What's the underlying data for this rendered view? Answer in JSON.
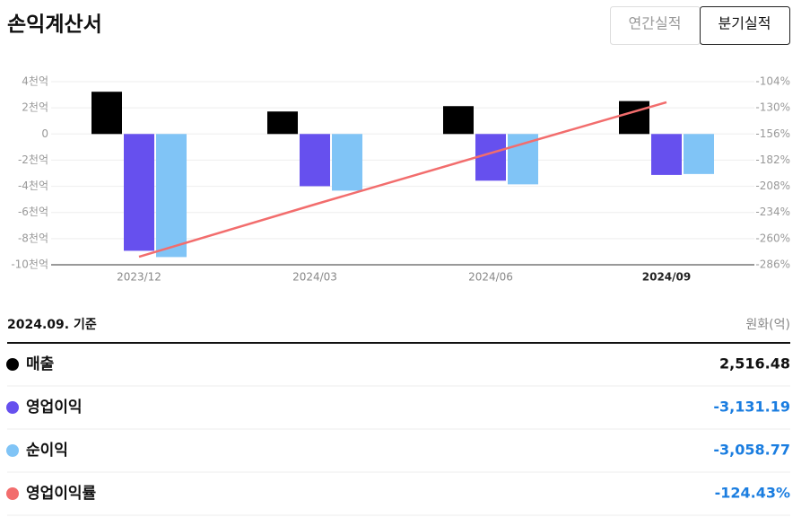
{
  "header": {
    "title": "손익계산서",
    "tabs": [
      "연간실적",
      "분기실적"
    ],
    "selected_tab": 1
  },
  "chart_data": {
    "type": "bar",
    "categories": [
      "2023/12",
      "2024/03",
      "2024/06",
      "2024/09"
    ],
    "ylim": [
      -10000,
      4000
    ],
    "yticks": [
      {
        "value": 4000,
        "label": "4천억"
      },
      {
        "value": 2000,
        "label": "2천억"
      },
      0,
      {
        "value": -2000,
        "label": "-2천억"
      },
      {
        "value": -4000,
        "label": "-4천억"
      },
      {
        "value": -6000,
        "label": "-6천억"
      },
      {
        "value": -8000,
        "label": "-8천억"
      },
      {
        "value": -10000,
        "label": "-10천억"
      }
    ],
    "y2lim": [
      -286,
      -104
    ],
    "y2ticks": [
      {
        "value": -104,
        "label": "-104%"
      },
      {
        "value": -130,
        "label": "-130%"
      },
      {
        "value": -156,
        "label": "-156%"
      },
      {
        "value": -182,
        "label": "-182%"
      },
      {
        "value": -208,
        "label": "-208%"
      },
      {
        "value": -234,
        "label": "-234%"
      },
      {
        "value": -260,
        "label": "-260%"
      },
      {
        "value": -286,
        "label": "-286%"
      }
    ],
    "grid": true,
    "series": [
      {
        "name": "매출",
        "color": "#000000",
        "values": [
          3230,
          1720,
          2130,
          2516.48
        ]
      },
      {
        "name": "영업이익",
        "color": "#6650ee",
        "values": [
          -8930,
          -3990,
          -3570,
          -3131.19
        ]
      },
      {
        "name": "순이익",
        "color": "#80c4f6",
        "values": [
          -9410,
          -4330,
          -3850,
          -3058.77
        ]
      },
      {
        "name": "영업이익률",
        "color": "#f26d6d",
        "type": "line",
        "axis": "y2",
        "values": [
          -278,
          -226,
          -175,
          -124.43
        ]
      }
    ]
  },
  "summary": {
    "date": "2024.09. 기준",
    "unit": "원화(억)",
    "values": [
      "2,516.48",
      "-3,131.19",
      "-3,058.77",
      "-124.43%"
    ]
  }
}
